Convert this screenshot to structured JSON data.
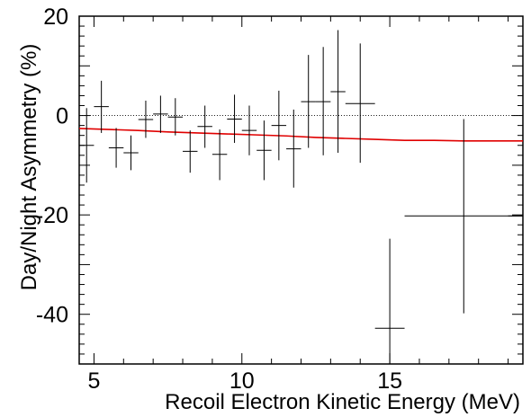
{
  "chart_data": {
    "type": "scatter",
    "xlabel": "Recoil Electron Kinetic Energy (MeV)",
    "ylabel": "Day/Night Asymmetry (%)",
    "xlim": [
      4.5,
      19.5
    ],
    "ylim": [
      -50,
      20
    ],
    "x_ticks": [
      5,
      10,
      15
    ],
    "y_ticks": [
      20,
      0,
      -20,
      -40
    ],
    "x_tick_labels": [
      "5",
      "10",
      "15"
    ],
    "y_tick_labels": [
      "20",
      "0",
      "-20",
      "-40"
    ],
    "zero_reference_line": true,
    "grid": false,
    "series": [
      {
        "points": [
          {
            "x": 4.75,
            "y": -6.0,
            "xerr": 0.25,
            "ylo": -13.5,
            "yhi": 1.5
          },
          {
            "x": 5.25,
            "y": 1.8,
            "xerr": 0.25,
            "ylo": -3.5,
            "yhi": 7.0
          },
          {
            "x": 5.75,
            "y": -6.5,
            "xerr": 0.25,
            "ylo": -10.5,
            "yhi": -2.5
          },
          {
            "x": 6.25,
            "y": -7.5,
            "xerr": 0.25,
            "ylo": -11.0,
            "yhi": -4.0
          },
          {
            "x": 6.75,
            "y": -0.8,
            "xerr": 0.25,
            "ylo": -4.5,
            "yhi": 3.0
          },
          {
            "x": 7.25,
            "y": 0.3,
            "xerr": 0.25,
            "ylo": -3.5,
            "yhi": 4.0
          },
          {
            "x": 7.75,
            "y": -0.3,
            "xerr": 0.25,
            "ylo": -4.0,
            "yhi": 3.5
          },
          {
            "x": 8.25,
            "y": -7.2,
            "xerr": 0.25,
            "ylo": -11.5,
            "yhi": -3.0
          },
          {
            "x": 8.75,
            "y": -2.2,
            "xerr": 0.25,
            "ylo": -6.5,
            "yhi": 2.0
          },
          {
            "x": 9.25,
            "y": -7.8,
            "xerr": 0.25,
            "ylo": -13.0,
            "yhi": -2.8
          },
          {
            "x": 9.75,
            "y": -0.7,
            "xerr": 0.25,
            "ylo": -5.5,
            "yhi": 4.2
          },
          {
            "x": 10.25,
            "y": -3.0,
            "xerr": 0.25,
            "ylo": -8.0,
            "yhi": 2.0
          },
          {
            "x": 10.75,
            "y": -7.0,
            "xerr": 0.25,
            "ylo": -13.0,
            "yhi": -1.0
          },
          {
            "x": 11.25,
            "y": -2.0,
            "xerr": 0.25,
            "ylo": -9.0,
            "yhi": 5.0
          },
          {
            "x": 11.75,
            "y": -6.7,
            "xerr": 0.25,
            "ylo": -14.5,
            "yhi": 1.2
          },
          {
            "x": 12.25,
            "y": 2.8,
            "xerr": 0.25,
            "ylo": -6.5,
            "yhi": 12.2
          },
          {
            "x": 12.75,
            "y": 2.8,
            "xerr": 0.25,
            "ylo": -8.0,
            "yhi": 13.8
          },
          {
            "x": 13.25,
            "y": 4.8,
            "xerr": 0.25,
            "ylo": -7.5,
            "yhi": 17.2
          },
          {
            "x": 14.0,
            "y": 2.4,
            "xerr": 0.5,
            "ylo": -9.5,
            "yhi": 14.5
          },
          {
            "x": 15.0,
            "y": -42.8,
            "xerr": 0.5,
            "ylo": -50.0,
            "yhi": -24.8
          },
          {
            "x": 17.5,
            "y": -20.2,
            "xerr": 2.0,
            "ylo": -39.8,
            "yhi": -0.7
          },
          {
            "x": 19.5,
            "y": -20.2,
            "xerr": 0.5,
            "ylo": -20.2,
            "yhi": -20.2
          }
        ]
      },
      {
        "type": "line",
        "color": "#e00000",
        "x": [
          4.5,
          5.5,
          6.5,
          7.5,
          8.5,
          9.5,
          10.5,
          11.5,
          12.5,
          13.5,
          14.5,
          15.5,
          16.5,
          17.5,
          18.5,
          19.5
        ],
        "y": [
          -2.6,
          -2.8,
          -3.0,
          -3.3,
          -3.5,
          -3.7,
          -3.9,
          -4.1,
          -4.4,
          -4.6,
          -4.8,
          -5.0,
          -5.0,
          -5.1,
          -5.1,
          -5.1
        ]
      }
    ]
  }
}
